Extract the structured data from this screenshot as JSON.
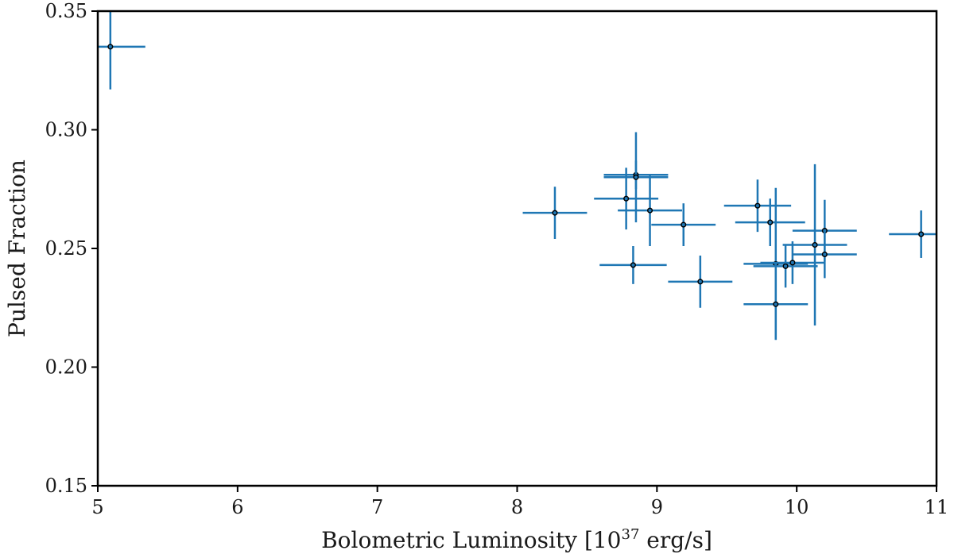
{
  "chart_data": {
    "type": "scatter",
    "title": "",
    "xlabel_main": "Bolometric Luminosity [10",
    "xlabel_exp": "37",
    "xlabel_tail": " erg/s]",
    "ylabel": "Pulsed Fraction",
    "xlim": [
      5,
      11
    ],
    "ylim": [
      0.15,
      0.35
    ],
    "xticks": [
      5,
      6,
      7,
      8,
      9,
      10,
      11
    ],
    "xtick_labels": [
      "5",
      "6",
      "7",
      "8",
      "9",
      "10",
      "11"
    ],
    "yticks": [
      0.15,
      0.2,
      0.25,
      0.3,
      0.35
    ],
    "ytick_labels": [
      "0.15",
      "0.20",
      "0.25",
      "0.30",
      "0.35"
    ],
    "grid": false,
    "series": [
      {
        "name": "Pulsed fraction",
        "color": "#1f77b4",
        "marker_edge": "#000000",
        "points": [
          {
            "x": 5.09,
            "y": 0.335,
            "xerr": 0.25,
            "yerr": 0.018
          },
          {
            "x": 8.27,
            "y": 0.265,
            "xerr": 0.23,
            "yerr": 0.011
          },
          {
            "x": 8.78,
            "y": 0.271,
            "xerr": 0.23,
            "yerr": 0.013
          },
          {
            "x": 8.85,
            "y": 0.281,
            "xerr": 0.23,
            "yerr": 0.006
          },
          {
            "x": 8.85,
            "y": 0.28,
            "xerr": 0.23,
            "yerr": 0.019
          },
          {
            "x": 8.83,
            "y": 0.243,
            "xerr": 0.24,
            "yerr": 0.008
          },
          {
            "x": 8.95,
            "y": 0.266,
            "xerr": 0.23,
            "yerr": 0.015
          },
          {
            "x": 9.19,
            "y": 0.26,
            "xerr": 0.23,
            "yerr": 0.009
          },
          {
            "x": 9.31,
            "y": 0.236,
            "xerr": 0.23,
            "yerr": 0.011
          },
          {
            "x": 9.72,
            "y": 0.268,
            "xerr": 0.24,
            "yerr": 0.011
          },
          {
            "x": 9.81,
            "y": 0.261,
            "xerr": 0.25,
            "yerr": 0.01
          },
          {
            "x": 9.85,
            "y": 0.2435,
            "xerr": 0.23,
            "yerr": 0.032
          },
          {
            "x": 9.85,
            "y": 0.2265,
            "xerr": 0.23,
            "yerr": 0.015
          },
          {
            "x": 9.92,
            "y": 0.2425,
            "xerr": 0.23,
            "yerr": 0.009
          },
          {
            "x": 9.97,
            "y": 0.244,
            "xerr": 0.23,
            "yerr": 0.009
          },
          {
            "x": 10.13,
            "y": 0.2515,
            "xerr": 0.23,
            "yerr": 0.034
          },
          {
            "x": 10.2,
            "y": 0.2575,
            "xerr": 0.23,
            "yerr": 0.013
          },
          {
            "x": 10.2,
            "y": 0.2475,
            "xerr": 0.23,
            "yerr": 0.01
          },
          {
            "x": 10.89,
            "y": 0.256,
            "xerr": 0.23,
            "yerr": 0.01
          }
        ]
      }
    ]
  }
}
